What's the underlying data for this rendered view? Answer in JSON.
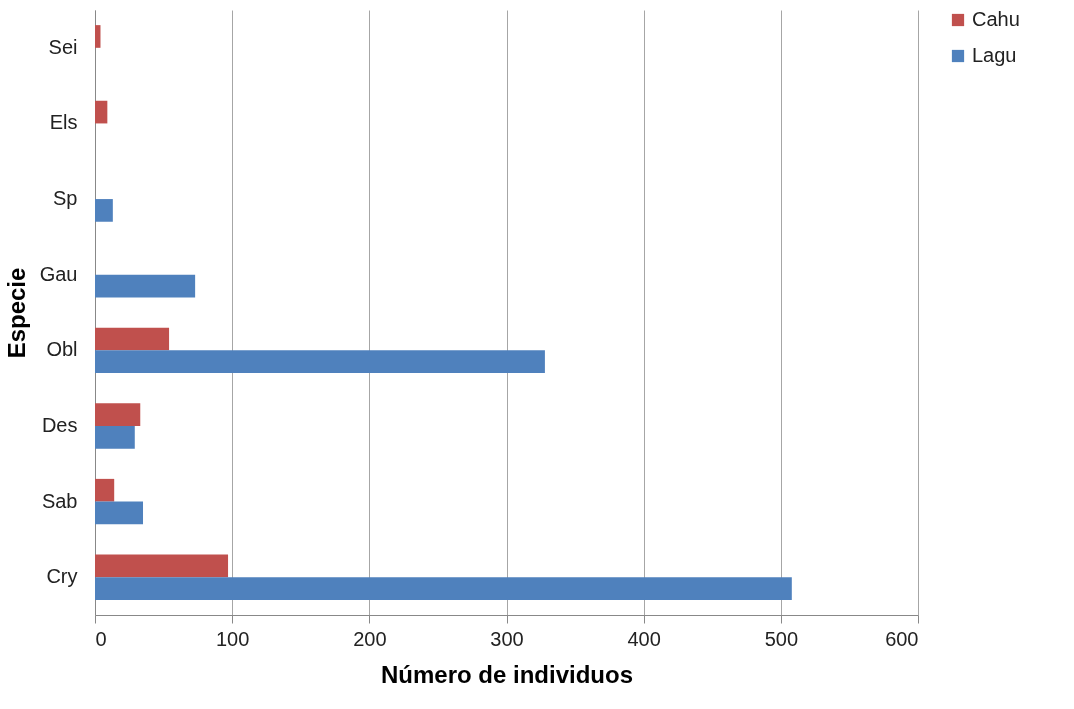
{
  "chart_data": {
    "type": "bar",
    "orientation": "horizontal",
    "xlabel": "Número de individuos",
    "ylabel": "Especie",
    "categories": [
      "Sei",
      "Els",
      "Sp",
      "Gau",
      "Obl",
      "Des",
      "Sab",
      "Cry"
    ],
    "series": [
      {
        "name": "Cahu",
        "color": "#c0504d",
        "values": [
          4,
          9,
          null,
          null,
          54,
          33,
          14,
          97
        ]
      },
      {
        "name": "Lagu",
        "color": "#4f81bd",
        "values": [
          null,
          null,
          13,
          73,
          328,
          29,
          35,
          508
        ]
      }
    ],
    "xlim": [
      0,
      600
    ],
    "xticks": [
      0,
      100,
      200,
      300,
      400,
      500,
      600
    ],
    "grid": "x",
    "legend": "right"
  }
}
